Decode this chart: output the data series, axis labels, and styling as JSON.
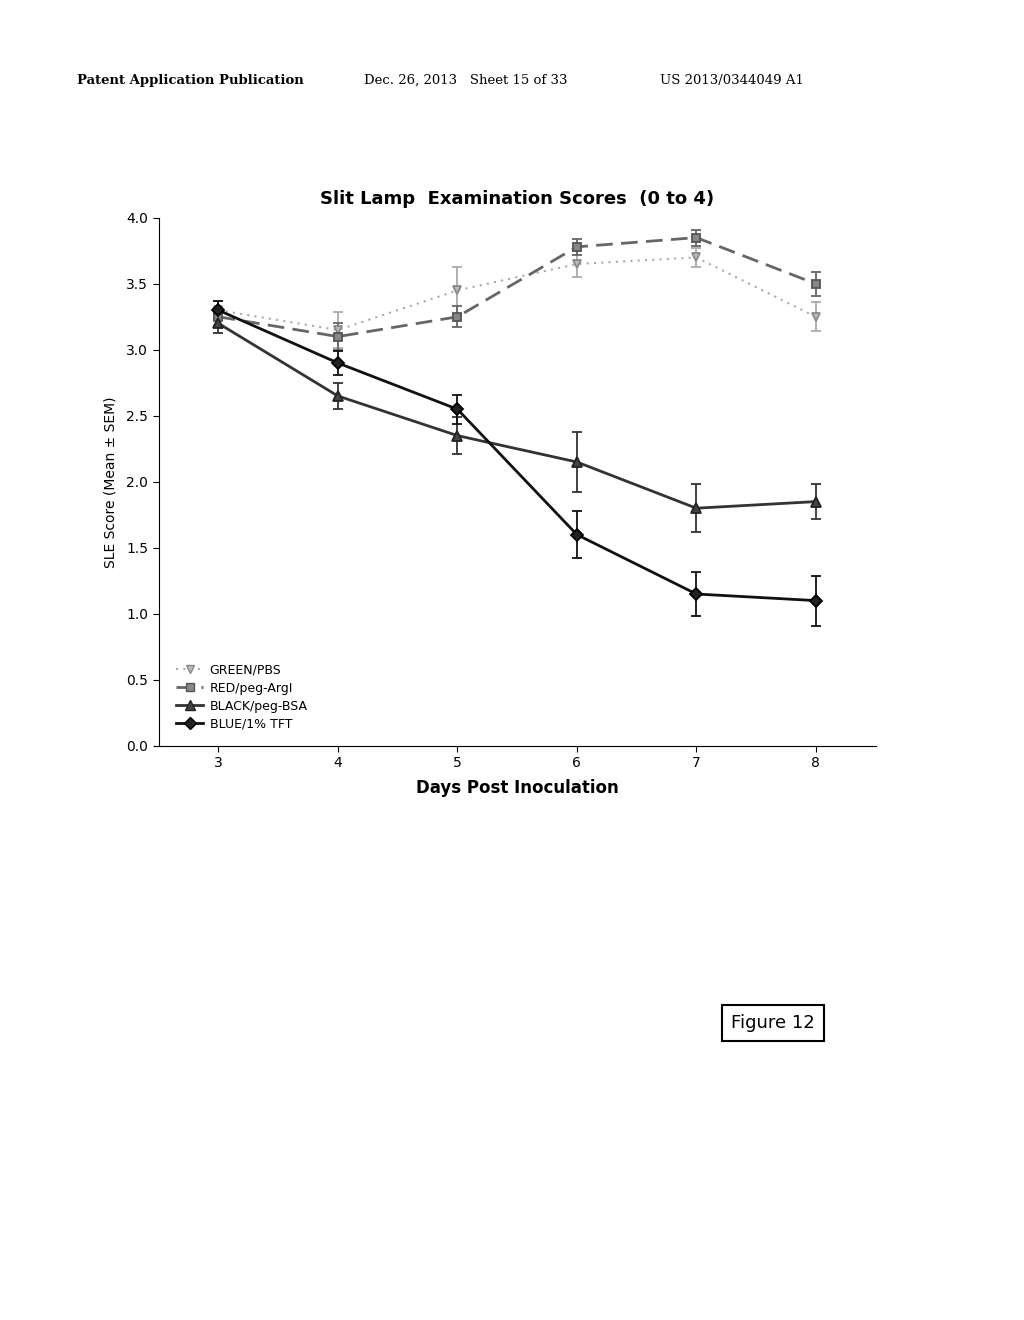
{
  "title": "Slit Lamp  Examination Scores  (0 to 4)",
  "xlabel": "Days Post Inoculation",
  "ylabel": "SLE Score (Mean ± SEM)",
  "x": [
    3,
    4,
    5,
    6,
    7,
    8
  ],
  "ylim": [
    0.0,
    4.0
  ],
  "yticks": [
    0.0,
    0.5,
    1.0,
    1.5,
    2.0,
    2.5,
    3.0,
    3.5,
    4.0
  ],
  "series": [
    {
      "label": "GREEN/PBS",
      "color": "#aaaaaa",
      "linestyle": "dotted",
      "marker": "v",
      "linewidth": 1.5,
      "markersize": 6,
      "y": [
        3.3,
        3.15,
        3.45,
        3.65,
        3.7,
        3.25
      ],
      "yerr": [
        0.07,
        0.14,
        0.18,
        0.1,
        0.07,
        0.11
      ]
    },
    {
      "label": "RED/peg-ArgI",
      "color": "#666666",
      "linestyle": "dashed",
      "marker": "s",
      "linewidth": 2.0,
      "markersize": 6,
      "y": [
        3.25,
        3.1,
        3.25,
        3.78,
        3.85,
        3.5
      ],
      "yerr": [
        0.07,
        0.1,
        0.08,
        0.06,
        0.06,
        0.09
      ]
    },
    {
      "label": "BLACK/peg-BSA",
      "color": "#333333",
      "linestyle": "solid",
      "marker": "^",
      "linewidth": 2.0,
      "markersize": 7,
      "y": [
        3.2,
        2.65,
        2.35,
        2.15,
        1.8,
        1.85
      ],
      "yerr": [
        0.07,
        0.1,
        0.14,
        0.23,
        0.18,
        0.13
      ]
    },
    {
      "label": "BLUE/1% TFT",
      "color": "#111111",
      "linestyle": "solid",
      "marker": "D",
      "linewidth": 2.0,
      "markersize": 6,
      "y": [
        3.3,
        2.9,
        2.55,
        1.6,
        1.15,
        1.1
      ],
      "yerr": [
        0.07,
        0.09,
        0.11,
        0.18,
        0.17,
        0.19
      ]
    }
  ],
  "figure_label": "Figure 12",
  "header_left": "Patent Application Publication",
  "header_mid": "Dec. 26, 2013   Sheet 15 of 33",
  "header_right": "US 2013/0344049 A1",
  "background_color": "#ffffff"
}
